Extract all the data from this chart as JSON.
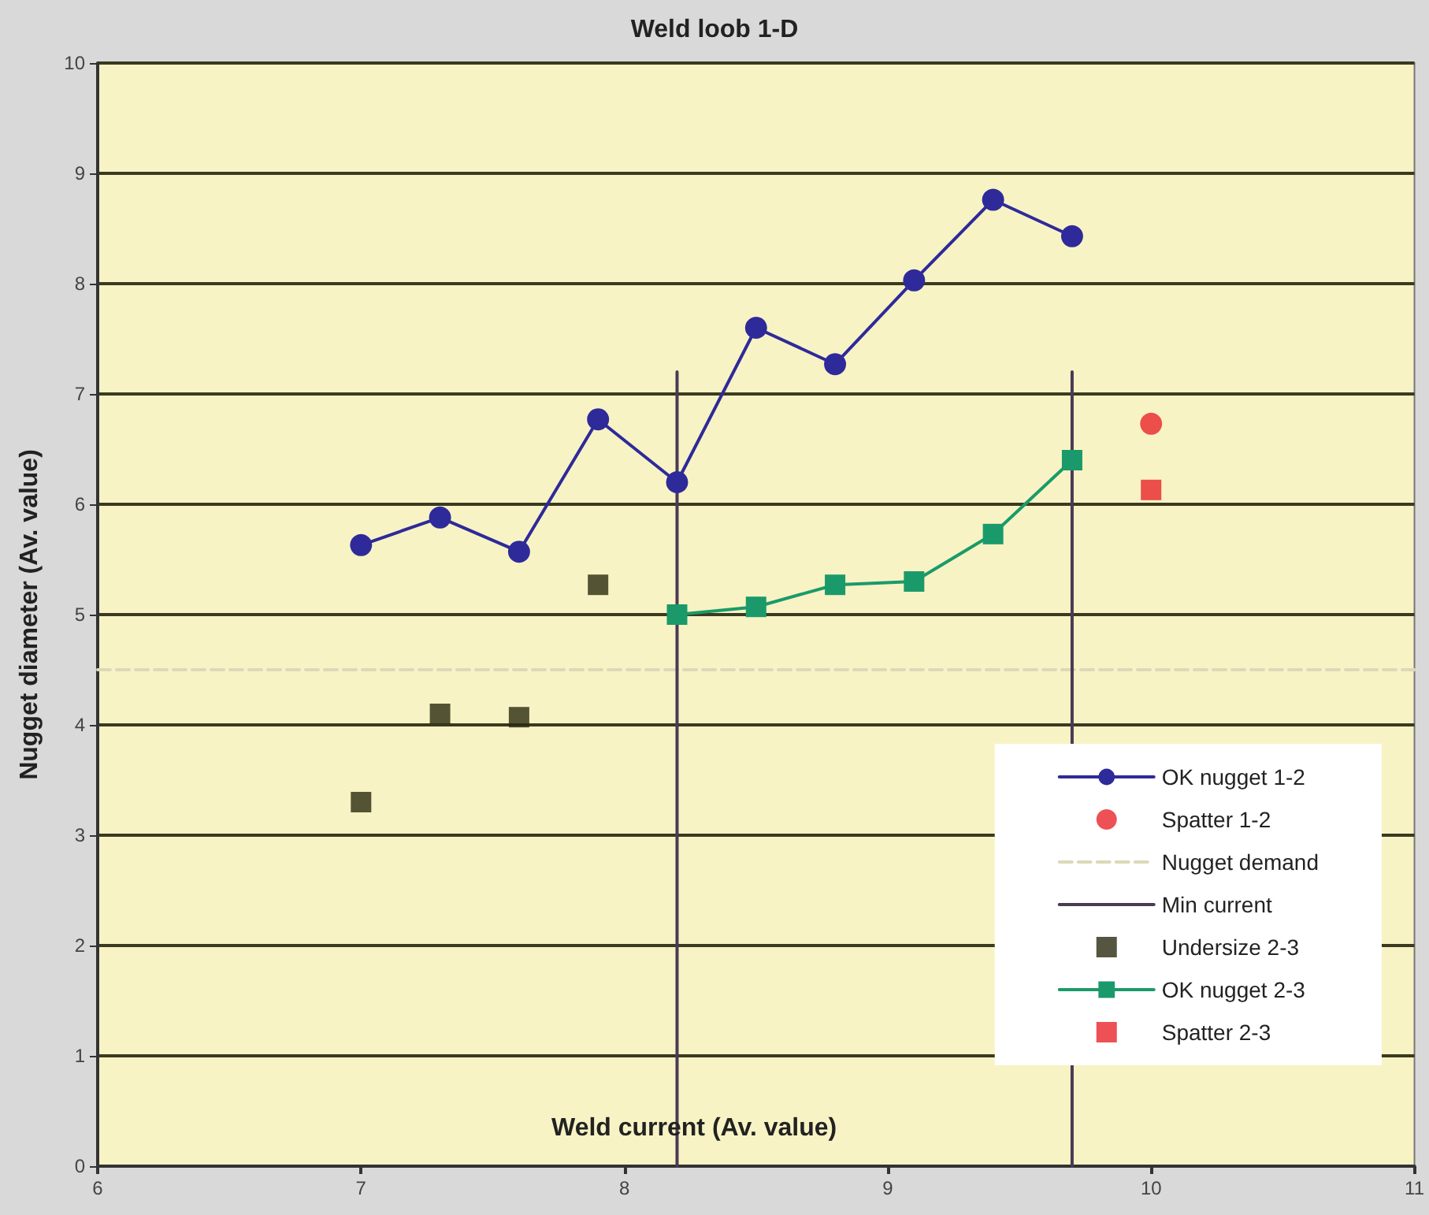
{
  "chart_data": {
    "type": "line",
    "title": "Weld loob 1-D",
    "xlabel": "Weld current (Av. value)",
    "ylabel": "Nugget diameter (Av. value)",
    "xlim": [
      6,
      11
    ],
    "xticks": [
      6,
      7,
      8,
      9,
      10,
      11
    ],
    "ylim": [
      0,
      10
    ],
    "yticks": [
      0,
      1,
      2,
      3,
      4,
      5,
      6,
      7,
      8,
      9,
      10
    ],
    "grid": "y",
    "legend": "bottom right",
    "series": [
      {
        "name": "OK nugget 1-2",
        "type": "line",
        "color": "#2e2a9a",
        "marker": "circle",
        "x": [
          7,
          7.3,
          7.6,
          7.9,
          8.2,
          8.5,
          8.8,
          9.1,
          9.4,
          9.7
        ],
        "values": [
          5.63,
          5.88,
          5.57,
          6.77,
          6.2,
          7.6,
          7.27,
          8.03,
          8.76,
          8.43
        ]
      },
      {
        "name": "Spatter 1-2",
        "type": "scatter",
        "color": "#e8242a",
        "marker": "circle",
        "x": [
          10
        ],
        "values": [
          6.73
        ]
      },
      {
        "name": "Nugget demand",
        "type": "line",
        "color": "#ddd8b8",
        "marker": "none",
        "line_style": "dashed",
        "x": [
          6,
          11
        ],
        "values": [
          4.5,
          4.5
        ]
      },
      {
        "name": "Min current",
        "type": "line",
        "color": "#4a3a55",
        "marker": "none",
        "x": [
          8.2,
          8.2,
          8.95,
          9.7,
          9.7
        ],
        "values": [
          0,
          7.2,
          null,
          0,
          7.2
        ]
      },
      {
        "name": "Undersize 2-3",
        "type": "scatter",
        "color": "#2a2a10",
        "marker": "square",
        "x": [
          7,
          7.3,
          7.6,
          7.9
        ],
        "values": [
          3.3,
          4.1,
          4.07,
          5.27
        ]
      },
      {
        "name": "OK nugget 2-3",
        "type": "line",
        "color": "#1a9a6a",
        "marker": "square",
        "x": [
          8.2,
          8.5,
          8.8,
          9.1,
          9.4,
          9.7
        ],
        "values": [
          5.0,
          5.07,
          5.27,
          5.3,
          5.73,
          6.4
        ]
      },
      {
        "name": "Spatter 2-3",
        "type": "scatter",
        "color": "#e8242a",
        "marker": "square",
        "x": [
          10
        ],
        "values": [
          6.13
        ]
      }
    ]
  }
}
